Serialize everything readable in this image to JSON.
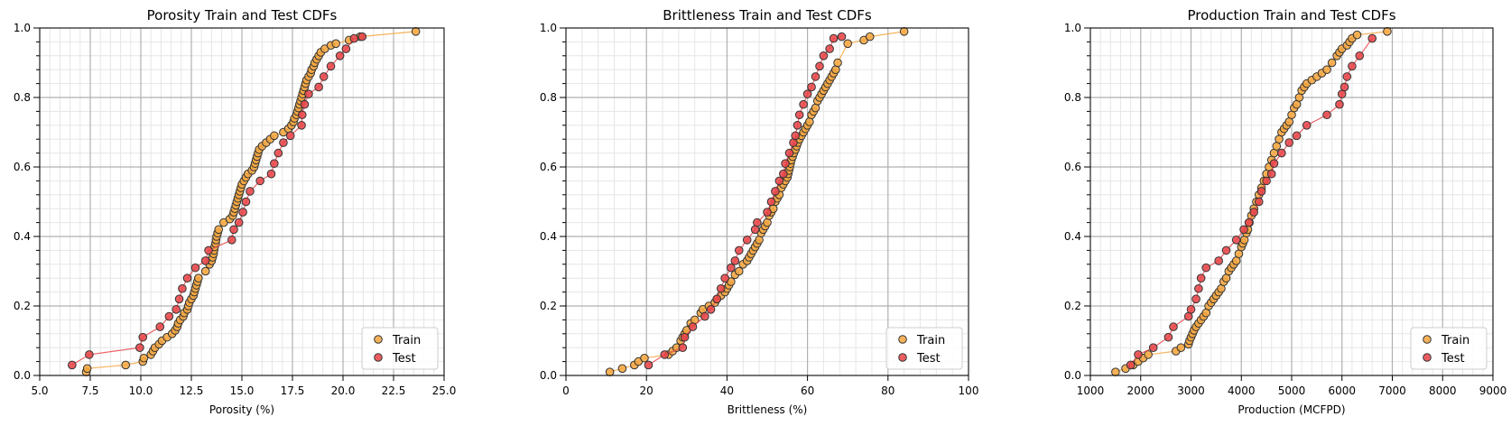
{
  "colors": {
    "train_fill": "#f5a742",
    "test_fill": "#e8474a",
    "train_line": "#f5a742",
    "test_line": "#e8474a",
    "marker_edge": "#333333"
  },
  "chart_data": [
    {
      "type": "scatter",
      "title": "Porosity Train and Test CDFs",
      "xlabel": "Porosity (%)",
      "ylabel": "",
      "xlim": [
        5.0,
        25.0
      ],
      "ylim": [
        0.0,
        1.0
      ],
      "xticks": [
        5.0,
        7.5,
        10.0,
        12.5,
        15.0,
        17.5,
        20.0,
        22.5,
        25.0
      ],
      "xtick_labels": [
        "5.0",
        "7.5",
        "10.0",
        "12.5",
        "15.0",
        "17.5",
        "20.0",
        "22.5",
        "25.0"
      ],
      "yticks": [
        0.0,
        0.2,
        0.4,
        0.6,
        0.8,
        1.0
      ],
      "ytick_labels": [
        "0.0",
        "0.2",
        "0.4",
        "0.6",
        "0.8",
        "1.0"
      ],
      "grid": true,
      "minor_grid": true,
      "legend": "lower-right",
      "series": [
        {
          "name": "Train",
          "x": [
            7.3,
            7.35,
            9.25,
            10.1,
            10.15,
            10.5,
            10.6,
            10.7,
            10.9,
            11.05,
            11.3,
            11.55,
            11.7,
            11.8,
            11.85,
            11.95,
            12.1,
            12.15,
            12.3,
            12.35,
            12.4,
            12.5,
            12.6,
            12.65,
            12.7,
            12.75,
            12.8,
            12.85,
            13.2,
            13.4,
            13.5,
            13.55,
            13.6,
            13.62,
            13.65,
            13.7,
            13.72,
            13.75,
            13.8,
            13.85,
            14.1,
            14.4,
            14.55,
            14.6,
            14.65,
            14.7,
            14.75,
            14.8,
            14.85,
            14.9,
            14.95,
            15.0,
            15.1,
            15.2,
            15.3,
            15.5,
            15.6,
            15.65,
            15.7,
            15.75,
            15.8,
            15.85,
            16.0,
            16.2,
            16.4,
            16.6,
            17.05,
            17.3,
            17.45,
            17.55,
            17.6,
            17.7,
            17.75,
            17.8,
            17.85,
            17.9,
            17.95,
            18.0,
            18.05,
            18.1,
            18.15,
            18.2,
            18.3,
            18.4,
            18.45,
            18.55,
            18.6,
            18.7,
            18.8,
            18.9,
            19.1,
            19.4,
            19.65,
            20.3,
            20.85,
            23.6
          ],
          "y": [
            0.01,
            0.02,
            0.03,
            0.04,
            0.05,
            0.06,
            0.07,
            0.08,
            0.09,
            0.1,
            0.11,
            0.12,
            0.13,
            0.14,
            0.15,
            0.16,
            0.17,
            0.18,
            0.19,
            0.2,
            0.21,
            0.22,
            0.23,
            0.24,
            0.25,
            0.26,
            0.27,
            0.28,
            0.3,
            0.32,
            0.33,
            0.34,
            0.35,
            0.36,
            0.37,
            0.38,
            0.39,
            0.4,
            0.41,
            0.42,
            0.44,
            0.45,
            0.46,
            0.47,
            0.48,
            0.49,
            0.5,
            0.51,
            0.52,
            0.53,
            0.54,
            0.55,
            0.56,
            0.57,
            0.58,
            0.59,
            0.6,
            0.61,
            0.62,
            0.63,
            0.64,
            0.65,
            0.66,
            0.67,
            0.68,
            0.69,
            0.7,
            0.71,
            0.72,
            0.73,
            0.74,
            0.75,
            0.76,
            0.77,
            0.78,
            0.79,
            0.8,
            0.81,
            0.82,
            0.83,
            0.84,
            0.85,
            0.86,
            0.87,
            0.88,
            0.89,
            0.9,
            0.91,
            0.92,
            0.93,
            0.94,
            0.95,
            0.955,
            0.965,
            0.975,
            0.99
          ]
        },
        {
          "name": "Test",
          "x": [
            6.6,
            7.45,
            9.95,
            10.1,
            10.95,
            11.4,
            11.75,
            11.9,
            12.05,
            12.3,
            12.7,
            13.2,
            13.35,
            14.5,
            14.6,
            14.85,
            15.05,
            15.2,
            15.4,
            15.9,
            16.45,
            16.6,
            16.8,
            17.05,
            17.4,
            17.95,
            17.98,
            18.1,
            18.3,
            18.8,
            19.05,
            19.4,
            19.85,
            20.15,
            20.55,
            20.95
          ],
          "y": [
            0.03,
            0.06,
            0.08,
            0.11,
            0.14,
            0.17,
            0.19,
            0.22,
            0.25,
            0.28,
            0.31,
            0.33,
            0.36,
            0.39,
            0.42,
            0.44,
            0.47,
            0.5,
            0.53,
            0.56,
            0.58,
            0.61,
            0.64,
            0.67,
            0.69,
            0.72,
            0.75,
            0.78,
            0.81,
            0.83,
            0.86,
            0.89,
            0.92,
            0.94,
            0.97,
            0.975
          ]
        }
      ]
    },
    {
      "type": "scatter",
      "title": "Brittleness Train and Test CDFs",
      "xlabel": "Brittleness (%)",
      "ylabel": "",
      "xlim": [
        0,
        100
      ],
      "ylim": [
        0.0,
        1.0
      ],
      "xticks": [
        0,
        20,
        40,
        60,
        80,
        100
      ],
      "xtick_labels": [
        "0",
        "20",
        "40",
        "60",
        "80",
        "100"
      ],
      "yticks": [
        0.0,
        0.2,
        0.4,
        0.6,
        0.8,
        1.0
      ],
      "ytick_labels": [
        "0.0",
        "0.2",
        "0.4",
        "0.6",
        "0.8",
        "1.0"
      ],
      "grid": true,
      "minor_grid": true,
      "legend": "lower-right",
      "series": [
        {
          "name": "Train",
          "x": [
            10.9,
            14.0,
            17.0,
            18.0,
            19.5,
            25.5,
            26.5,
            27.5,
            28.5,
            29.0,
            29.5,
            30.0,
            31.0,
            32.0,
            33.5,
            34.0,
            35.5,
            37.0,
            37.5,
            38.5,
            39.5,
            40.0,
            40.5,
            41.0,
            42.0,
            43.0,
            44.0,
            45.0,
            45.5,
            46.0,
            46.5,
            47.0,
            47.5,
            48.0,
            48.5,
            49.0,
            49.5,
            50.0,
            50.5,
            51.0,
            51.5,
            52.0,
            52.5,
            53.0,
            53.5,
            54.0,
            54.5,
            55.0,
            55.2,
            55.4,
            55.6,
            55.8,
            56.0,
            56.3,
            56.6,
            57.0,
            57.3,
            57.6,
            58.0,
            58.5,
            59.0,
            59.5,
            60.0,
            60.5,
            61.0,
            61.5,
            62.0,
            62.5,
            63.0,
            63.5,
            64.0,
            64.5,
            65.0,
            65.5,
            66.0,
            66.5,
            67.0,
            67.5,
            70.0,
            74.0,
            75.5,
            84.0
          ],
          "y": [
            0.01,
            0.02,
            0.03,
            0.04,
            0.05,
            0.06,
            0.07,
            0.08,
            0.1,
            0.11,
            0.12,
            0.13,
            0.15,
            0.16,
            0.18,
            0.19,
            0.2,
            0.21,
            0.22,
            0.23,
            0.24,
            0.25,
            0.26,
            0.27,
            0.29,
            0.3,
            0.32,
            0.33,
            0.34,
            0.35,
            0.36,
            0.37,
            0.38,
            0.39,
            0.41,
            0.42,
            0.43,
            0.44,
            0.46,
            0.47,
            0.48,
            0.5,
            0.51,
            0.52,
            0.54,
            0.55,
            0.56,
            0.57,
            0.58,
            0.59,
            0.6,
            0.61,
            0.62,
            0.63,
            0.64,
            0.65,
            0.66,
            0.67,
            0.68,
            0.69,
            0.7,
            0.71,
            0.72,
            0.73,
            0.75,
            0.76,
            0.77,
            0.79,
            0.8,
            0.81,
            0.82,
            0.83,
            0.84,
            0.85,
            0.86,
            0.87,
            0.88,
            0.9,
            0.955,
            0.965,
            0.975,
            0.99
          ]
        },
        {
          "name": "Test",
          "x": [
            20.5,
            24.5,
            29.0,
            29.5,
            31.5,
            34.5,
            36.0,
            37.5,
            38.5,
            39.5,
            41.0,
            42.0,
            43.0,
            45.0,
            47.0,
            47.5,
            50.0,
            51.0,
            52.0,
            53.0,
            54.0,
            54.5,
            55.5,
            56.5,
            57.0,
            57.5,
            58.0,
            59.0,
            60.0,
            61.0,
            62.0,
            63.0,
            64.0,
            65.5,
            66.5,
            68.5
          ],
          "y": [
            0.03,
            0.06,
            0.08,
            0.11,
            0.14,
            0.17,
            0.19,
            0.22,
            0.25,
            0.28,
            0.31,
            0.33,
            0.36,
            0.39,
            0.42,
            0.44,
            0.47,
            0.5,
            0.53,
            0.56,
            0.58,
            0.61,
            0.64,
            0.67,
            0.69,
            0.72,
            0.75,
            0.78,
            0.81,
            0.83,
            0.86,
            0.89,
            0.92,
            0.94,
            0.97,
            0.975
          ]
        }
      ]
    },
    {
      "type": "scatter",
      "title": "Production Train and Test CDFs",
      "xlabel": "Production (MCFPD)",
      "ylabel": "",
      "xlim": [
        1000,
        9000
      ],
      "ylim": [
        0.0,
        1.0
      ],
      "xticks": [
        1000,
        2000,
        3000,
        4000,
        5000,
        6000,
        7000,
        8000,
        9000
      ],
      "xtick_labels": [
        "1000",
        "2000",
        "3000",
        "4000",
        "5000",
        "6000",
        "7000",
        "8000",
        "9000"
      ],
      "yticks": [
        0.0,
        0.2,
        0.4,
        0.6,
        0.8,
        1.0
      ],
      "ytick_labels": [
        "0.0",
        "0.2",
        "0.4",
        "0.6",
        "0.8",
        "1.0"
      ],
      "grid": true,
      "minor_grid": true,
      "legend": "lower-right",
      "series": [
        {
          "name": "Train",
          "x": [
            1500,
            1700,
            1850,
            1950,
            2050,
            2150,
            2700,
            2800,
            2950,
            2970,
            3000,
            3030,
            3060,
            3100,
            3150,
            3200,
            3250,
            3300,
            3350,
            3400,
            3450,
            3500,
            3550,
            3600,
            3650,
            3700,
            3750,
            3800,
            3850,
            3900,
            3950,
            4000,
            4030,
            4060,
            4100,
            4130,
            4160,
            4200,
            4250,
            4300,
            4350,
            4400,
            4450,
            4500,
            4550,
            4600,
            4650,
            4700,
            4750,
            4800,
            4850,
            4900,
            4950,
            5000,
            5050,
            5100,
            5150,
            5200,
            5250,
            5300,
            5400,
            5500,
            5600,
            5700,
            5800,
            5900,
            5950,
            6000,
            6100,
            6150,
            6200,
            6300,
            6900
          ],
          "y": [
            0.01,
            0.02,
            0.03,
            0.04,
            0.05,
            0.06,
            0.07,
            0.08,
            0.09,
            0.1,
            0.11,
            0.12,
            0.13,
            0.14,
            0.15,
            0.16,
            0.17,
            0.18,
            0.2,
            0.21,
            0.22,
            0.23,
            0.24,
            0.25,
            0.27,
            0.28,
            0.3,
            0.31,
            0.32,
            0.33,
            0.35,
            0.37,
            0.38,
            0.39,
            0.41,
            0.42,
            0.44,
            0.46,
            0.48,
            0.5,
            0.52,
            0.54,
            0.56,
            0.58,
            0.6,
            0.62,
            0.64,
            0.66,
            0.68,
            0.7,
            0.71,
            0.72,
            0.73,
            0.75,
            0.77,
            0.78,
            0.8,
            0.82,
            0.83,
            0.84,
            0.85,
            0.86,
            0.87,
            0.88,
            0.9,
            0.92,
            0.93,
            0.94,
            0.95,
            0.96,
            0.97,
            0.98,
            0.99
          ]
        },
        {
          "name": "Test",
          "x": [
            1800,
            1950,
            2250,
            2550,
            2650,
            2950,
            3000,
            3100,
            3150,
            3200,
            3300,
            3550,
            3700,
            3900,
            4050,
            4150,
            4250,
            4350,
            4400,
            4500,
            4600,
            4650,
            4800,
            4950,
            5100,
            5300,
            5700,
            5950,
            6000,
            6050,
            6100,
            6200,
            6350,
            6600
          ],
          "y": [
            0.03,
            0.06,
            0.08,
            0.11,
            0.14,
            0.17,
            0.19,
            0.22,
            0.25,
            0.28,
            0.31,
            0.33,
            0.36,
            0.39,
            0.42,
            0.44,
            0.47,
            0.5,
            0.53,
            0.56,
            0.58,
            0.61,
            0.64,
            0.67,
            0.69,
            0.72,
            0.75,
            0.78,
            0.81,
            0.83,
            0.86,
            0.89,
            0.92,
            0.97
          ]
        }
      ]
    }
  ]
}
